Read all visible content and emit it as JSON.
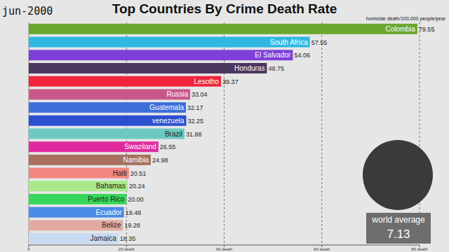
{
  "chart_data": {
    "type": "bar",
    "orientation": "horizontal",
    "title": "Top Countries By Crime Death Rate",
    "date": "jun-2000",
    "subtitle": "homicide death/100,000 people/year",
    "categories": [
      "Colombia",
      "South Africa",
      "El Salvador",
      "Honduras",
      "Lesotho",
      "Russia",
      "Guatemala",
      "venezuela",
      "Brazil",
      "Swaziland",
      "Namibia",
      "Haiti",
      "Bahamas",
      "Puerto Rico",
      "Ecuador",
      "Belize",
      "Jamaica"
    ],
    "values": [
      79.55,
      57.55,
      54.06,
      48.75,
      39.37,
      33.04,
      32.17,
      32.25,
      31.88,
      26.55,
      24.98,
      20.51,
      20.24,
      20.0,
      19.48,
      19.28,
      18.35
    ],
    "value_labels": [
      "79.55",
      "57.55",
      "54.06",
      "48.75",
      "39.37",
      "33.04",
      "32.17",
      "32.25",
      "31.88",
      "26.55",
      "24.98",
      "20.51",
      "20.24",
      "20.00",
      "19.48",
      "19.28",
      "18.35"
    ],
    "colors": [
      "#6aa72f",
      "#2fb8e2",
      "#7d40d8",
      "#4b3660",
      "#f0243a",
      "#c8588a",
      "#3c6fd8",
      "#2a4fd0",
      "#6cc9c1",
      "#e02ba0",
      "#a8705f",
      "#f2877f",
      "#a9e98a",
      "#37d75a",
      "#4a8be8",
      "#e2aaa2",
      "#c9d9f1"
    ],
    "xlim": [
      0,
      80
    ],
    "xticks": [
      0,
      {
        "value": 20,
        "label": "20 death"
      },
      {
        "value": 40,
        "label": "40 death"
      },
      {
        "value": 60,
        "label": "60 death"
      },
      {
        "value": 80,
        "label": "80 death"
      }
    ],
    "grid": true,
    "data_labels": true,
    "world_average": {
      "label": "world average",
      "value": 7.13
    }
  }
}
